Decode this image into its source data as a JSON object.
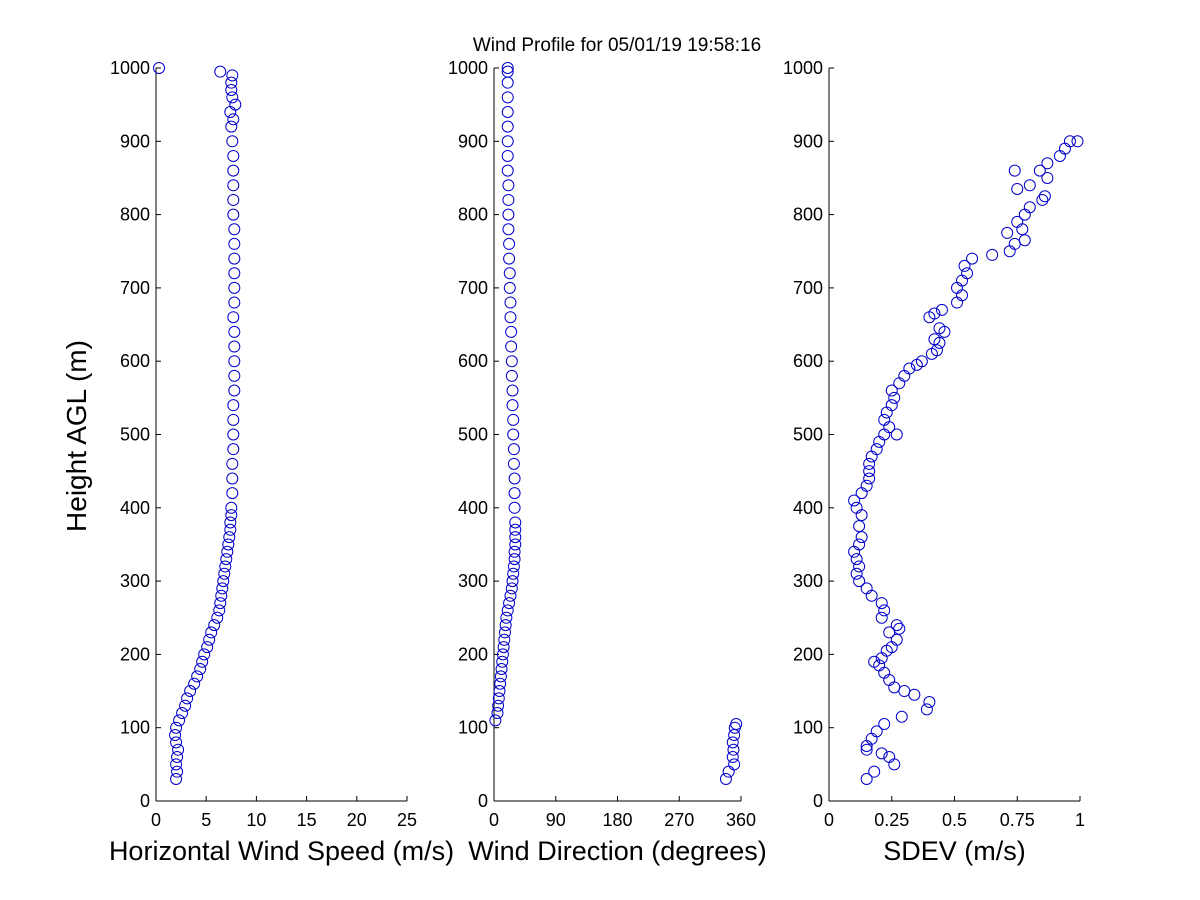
{
  "chart_data": {
    "title": "Wind Profile for  05/01/19 19:58:16",
    "ylabel": "Height AGL (m)",
    "panels": [
      {
        "type": "scatter",
        "xlabel": "Horizontal Wind Speed (m/s)",
        "xlim": [
          0,
          25
        ],
        "xticks": [
          0,
          5,
          10,
          15,
          20,
          25
        ],
        "ylim": [
          0,
          1000
        ],
        "yticks": [
          0,
          100,
          200,
          300,
          400,
          500,
          600,
          700,
          800,
          900,
          1000
        ],
        "points": [
          [
            2.0,
            30
          ],
          [
            2.1,
            40
          ],
          [
            2.0,
            50
          ],
          [
            2.1,
            60
          ],
          [
            2.2,
            70
          ],
          [
            2.0,
            80
          ],
          [
            1.9,
            90
          ],
          [
            2.0,
            100
          ],
          [
            2.3,
            110
          ],
          [
            2.6,
            120
          ],
          [
            2.9,
            130
          ],
          [
            3.1,
            140
          ],
          [
            3.4,
            150
          ],
          [
            3.8,
            160
          ],
          [
            4.1,
            170
          ],
          [
            4.4,
            180
          ],
          [
            4.6,
            190
          ],
          [
            4.8,
            200
          ],
          [
            5.1,
            210
          ],
          [
            5.3,
            220
          ],
          [
            5.5,
            230
          ],
          [
            5.8,
            240
          ],
          [
            6.1,
            250
          ],
          [
            6.3,
            260
          ],
          [
            6.4,
            270
          ],
          [
            6.5,
            280
          ],
          [
            6.6,
            290
          ],
          [
            6.7,
            300
          ],
          [
            6.8,
            310
          ],
          [
            6.9,
            320
          ],
          [
            7.0,
            330
          ],
          [
            7.1,
            340
          ],
          [
            7.2,
            350
          ],
          [
            7.3,
            360
          ],
          [
            7.4,
            370
          ],
          [
            7.4,
            380
          ],
          [
            7.5,
            390
          ],
          [
            7.5,
            400
          ],
          [
            7.6,
            420
          ],
          [
            7.6,
            440
          ],
          [
            7.6,
            460
          ],
          [
            7.7,
            480
          ],
          [
            7.7,
            500
          ],
          [
            7.7,
            520
          ],
          [
            7.7,
            540
          ],
          [
            7.8,
            560
          ],
          [
            7.8,
            580
          ],
          [
            7.8,
            600
          ],
          [
            7.8,
            620
          ],
          [
            7.8,
            640
          ],
          [
            7.7,
            660
          ],
          [
            7.8,
            680
          ],
          [
            7.8,
            700
          ],
          [
            7.8,
            720
          ],
          [
            7.8,
            740
          ],
          [
            7.8,
            760
          ],
          [
            7.8,
            780
          ],
          [
            7.7,
            800
          ],
          [
            7.7,
            820
          ],
          [
            7.7,
            840
          ],
          [
            7.7,
            860
          ],
          [
            7.7,
            880
          ],
          [
            7.6,
            900
          ],
          [
            7.5,
            920
          ],
          [
            7.7,
            930
          ],
          [
            7.4,
            940
          ],
          [
            7.9,
            950
          ],
          [
            7.6,
            960
          ],
          [
            7.5,
            970
          ],
          [
            7.5,
            980
          ],
          [
            7.6,
            990
          ],
          [
            6.4,
            995
          ],
          [
            0.3,
            1000
          ]
        ]
      },
      {
        "type": "scatter",
        "xlabel": "Wind Direction (degrees)",
        "xlim": [
          0,
          360
        ],
        "xticks": [
          0,
          90,
          180,
          270,
          360
        ],
        "ylim": [
          0,
          1000
        ],
        "yticks": [
          0,
          100,
          200,
          300,
          400,
          500,
          600,
          700,
          800,
          900,
          1000
        ],
        "points": [
          [
            338,
            30
          ],
          [
            342,
            40
          ],
          [
            350,
            50
          ],
          [
            348,
            60
          ],
          [
            349,
            70
          ],
          [
            348,
            80
          ],
          [
            350,
            90
          ],
          [
            351,
            100
          ],
          [
            353,
            105
          ],
          [
            2,
            110
          ],
          [
            5,
            120
          ],
          [
            6,
            130
          ],
          [
            7,
            140
          ],
          [
            8,
            150
          ],
          [
            9,
            160
          ],
          [
            10,
            170
          ],
          [
            11,
            180
          ],
          [
            12,
            190
          ],
          [
            13,
            200
          ],
          [
            14,
            210
          ],
          [
            15,
            220
          ],
          [
            16,
            230
          ],
          [
            17,
            240
          ],
          [
            18,
            250
          ],
          [
            20,
            260
          ],
          [
            22,
            270
          ],
          [
            24,
            280
          ],
          [
            26,
            290
          ],
          [
            27,
            300
          ],
          [
            28,
            310
          ],
          [
            29,
            320
          ],
          [
            30,
            330
          ],
          [
            30,
            340
          ],
          [
            31,
            350
          ],
          [
            31,
            360
          ],
          [
            31,
            370
          ],
          [
            31,
            380
          ],
          [
            30,
            400
          ],
          [
            30,
            420
          ],
          [
            30,
            440
          ],
          [
            29,
            460
          ],
          [
            29,
            480
          ],
          [
            28,
            500
          ],
          [
            28,
            520
          ],
          [
            27,
            540
          ],
          [
            27,
            560
          ],
          [
            26,
            580
          ],
          [
            26,
            600
          ],
          [
            25,
            620
          ],
          [
            25,
            640
          ],
          [
            24,
            660
          ],
          [
            24,
            680
          ],
          [
            23,
            700
          ],
          [
            23,
            720
          ],
          [
            22,
            740
          ],
          [
            22,
            760
          ],
          [
            21,
            780
          ],
          [
            21,
            800
          ],
          [
            21,
            820
          ],
          [
            21,
            840
          ],
          [
            20,
            860
          ],
          [
            20,
            880
          ],
          [
            20,
            900
          ],
          [
            20,
            920
          ],
          [
            20,
            940
          ],
          [
            20,
            960
          ],
          [
            20,
            980
          ],
          [
            20,
            995
          ],
          [
            20,
            1000
          ]
        ]
      },
      {
        "type": "scatter",
        "xlabel": "SDEV  (m/s)",
        "xlim": [
          0,
          1
        ],
        "xticks": [
          0,
          0.25,
          0.5,
          0.75,
          1
        ],
        "xticklabels": [
          "0",
          "0.25",
          "0.5",
          "0.75",
          "1"
        ],
        "ylim": [
          0,
          1000
        ],
        "yticks": [
          0,
          100,
          200,
          300,
          400,
          500,
          600,
          700,
          800,
          900,
          1000
        ],
        "points": [
          [
            0.15,
            30
          ],
          [
            0.18,
            40
          ],
          [
            0.26,
            50
          ],
          [
            0.24,
            60
          ],
          [
            0.21,
            65
          ],
          [
            0.15,
            70
          ],
          [
            0.15,
            75
          ],
          [
            0.17,
            85
          ],
          [
            0.19,
            95
          ],
          [
            0.22,
            105
          ],
          [
            0.29,
            115
          ],
          [
            0.39,
            125
          ],
          [
            0.4,
            135
          ],
          [
            0.34,
            145
          ],
          [
            0.3,
            150
          ],
          [
            0.26,
            155
          ],
          [
            0.24,
            165
          ],
          [
            0.22,
            175
          ],
          [
            0.2,
            185
          ],
          [
            0.18,
            190
          ],
          [
            0.21,
            195
          ],
          [
            0.23,
            205
          ],
          [
            0.25,
            210
          ],
          [
            0.27,
            220
          ],
          [
            0.24,
            230
          ],
          [
            0.28,
            235
          ],
          [
            0.27,
            240
          ],
          [
            0.21,
            250
          ],
          [
            0.22,
            260
          ],
          [
            0.21,
            270
          ],
          [
            0.17,
            280
          ],
          [
            0.15,
            290
          ],
          [
            0.12,
            300
          ],
          [
            0.11,
            310
          ],
          [
            0.12,
            320
          ],
          [
            0.11,
            330
          ],
          [
            0.1,
            340
          ],
          [
            0.12,
            350
          ],
          [
            0.13,
            360
          ],
          [
            0.12,
            375
          ],
          [
            0.13,
            390
          ],
          [
            0.11,
            400
          ],
          [
            0.1,
            410
          ],
          [
            0.13,
            420
          ],
          [
            0.15,
            430
          ],
          [
            0.16,
            440
          ],
          [
            0.16,
            450
          ],
          [
            0.16,
            460
          ],
          [
            0.17,
            470
          ],
          [
            0.19,
            480
          ],
          [
            0.2,
            490
          ],
          [
            0.22,
            500
          ],
          [
            0.27,
            500
          ],
          [
            0.24,
            510
          ],
          [
            0.22,
            520
          ],
          [
            0.23,
            530
          ],
          [
            0.25,
            540
          ],
          [
            0.26,
            550
          ],
          [
            0.25,
            560
          ],
          [
            0.28,
            570
          ],
          [
            0.3,
            580
          ],
          [
            0.32,
            590
          ],
          [
            0.35,
            595
          ],
          [
            0.37,
            600
          ],
          [
            0.41,
            610
          ],
          [
            0.43,
            615
          ],
          [
            0.44,
            625
          ],
          [
            0.42,
            630
          ],
          [
            0.46,
            640
          ],
          [
            0.44,
            645
          ],
          [
            0.4,
            660
          ],
          [
            0.42,
            665
          ],
          [
            0.45,
            670
          ],
          [
            0.51,
            680
          ],
          [
            0.53,
            690
          ],
          [
            0.51,
            700
          ],
          [
            0.53,
            710
          ],
          [
            0.55,
            720
          ],
          [
            0.54,
            730
          ],
          [
            0.57,
            740
          ],
          [
            0.65,
            745
          ],
          [
            0.72,
            750
          ],
          [
            0.74,
            760
          ],
          [
            0.78,
            765
          ],
          [
            0.71,
            775
          ],
          [
            0.77,
            780
          ],
          [
            0.75,
            790
          ],
          [
            0.78,
            800
          ],
          [
            0.8,
            810
          ],
          [
            0.85,
            820
          ],
          [
            0.86,
            825
          ],
          [
            0.75,
            835
          ],
          [
            0.8,
            840
          ],
          [
            0.87,
            850
          ],
          [
            0.84,
            860
          ],
          [
            0.74,
            860
          ],
          [
            0.87,
            870
          ],
          [
            0.92,
            880
          ],
          [
            0.94,
            890
          ],
          [
            0.96,
            900
          ],
          [
            0.99,
            900
          ]
        ]
      }
    ]
  }
}
